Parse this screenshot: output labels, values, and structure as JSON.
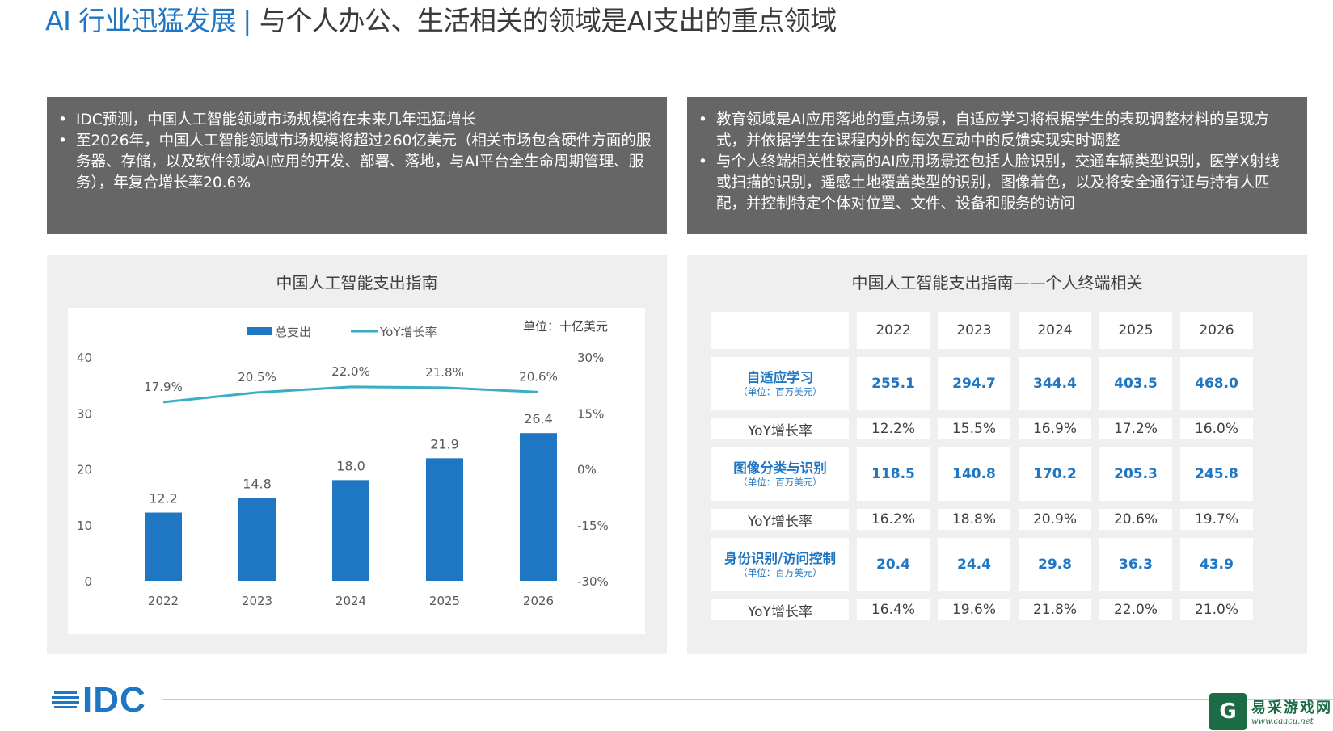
{
  "header": {
    "title_lead": "AI 行业迅猛发展",
    "separator": "|",
    "title_rest": "与个人办公、生活相关的领域是AI支出的重点领域"
  },
  "left_box": {
    "bullets": [
      "IDC预测，中国人工智能领域市场规模将在未来几年迅猛增长",
      "至2026年，中国人工智能领域市场规模将超过260亿美元（相关市场包含硬件方面的服务器、存储，以及软件领域AI应用的开发、部署、落地，与AI平台全生命周期管理、服务），年复合增长率20.6%"
    ]
  },
  "right_box": {
    "bullets": [
      "教育领域是AI应用落地的重点场景，自适应学习将根据学生的表现调整材料的呈现方式，并依据学生在课程内外的每次互动中的反馈实现实时调整",
      "与个人终端相关性较高的AI应用场景还包括人脸识别，交通车辆类型识别，医学X射线或扫描的识别，遥感土地覆盖类型的识别，图像着色，以及将安全通行证与持有人匹配，并控制特定个体对位置、文件、设备和服务的访问"
    ]
  },
  "left_panel": {
    "title": "中国人工智能支出指南"
  },
  "chart_data": {
    "type": "bar",
    "title": "中国人工智能支出指南",
    "unit_label": "单位：十亿美元",
    "categories": [
      "2022",
      "2023",
      "2024",
      "2025",
      "2026"
    ],
    "series": [
      {
        "name": "总支出",
        "kind": "bar",
        "axis": "left",
        "values": [
          12.2,
          14.8,
          18.0,
          21.9,
          26.4
        ],
        "labels": [
          "12.2",
          "14.8",
          "18.0",
          "21.9",
          "26.4"
        ]
      },
      {
        "name": "YoY增长率",
        "kind": "line",
        "axis": "right",
        "values": [
          17.9,
          20.5,
          22.0,
          21.8,
          20.6
        ],
        "labels": [
          "17.9%",
          "20.5%",
          "22.0%",
          "21.8%",
          "20.6%"
        ]
      }
    ],
    "y_left": {
      "min": 0,
      "max": 40,
      "ticks": [
        "0",
        "10",
        "20",
        "30",
        "40"
      ]
    },
    "y_right": {
      "min": -30,
      "max": 30,
      "ticks": [
        "-30%",
        "-15%",
        "0%",
        "15%",
        "30%"
      ]
    },
    "colors": {
      "bar": "#1f76c2",
      "line": "#3aaec7"
    }
  },
  "right_panel": {
    "title": "中国人工智能支出指南——个人终端相关",
    "years": [
      "2022",
      "2023",
      "2024",
      "2025",
      "2026"
    ],
    "rows": [
      {
        "type": "main",
        "label": "自适应学习",
        "unit": "（单位：百万美元）",
        "values": [
          "255.1",
          "294.7",
          "344.4",
          "403.5",
          "468.0"
        ]
      },
      {
        "type": "yoy",
        "label": "YoY增长率",
        "values": [
          "12.2%",
          "15.5%",
          "16.9%",
          "17.2%",
          "16.0%"
        ]
      },
      {
        "type": "main",
        "label": "图像分类与识别",
        "unit": "（单位：百万美元）",
        "values": [
          "118.5",
          "140.8",
          "170.2",
          "205.3",
          "245.8"
        ]
      },
      {
        "type": "yoy",
        "label": "YoY增长率",
        "values": [
          "16.2%",
          "18.8%",
          "20.9%",
          "20.6%",
          "19.7%"
        ]
      },
      {
        "type": "main",
        "label": "身份识别/访问控制",
        "unit": "（单位：百万美元）",
        "values": [
          "20.4",
          "24.4",
          "29.8",
          "36.3",
          "43.9"
        ]
      },
      {
        "type": "yoy",
        "label": "YoY增长率",
        "values": [
          "16.4%",
          "19.6%",
          "21.8%",
          "22.0%",
          "21.0%"
        ]
      }
    ]
  },
  "footer": {
    "logo_text": "IDC",
    "watermark_cn": "易采游戏网",
    "watermark_url": "www.caacu.net"
  },
  "colors": {
    "accent": "#1f76c2",
    "grey_box": "#666666",
    "panel_bg": "#efefef"
  }
}
